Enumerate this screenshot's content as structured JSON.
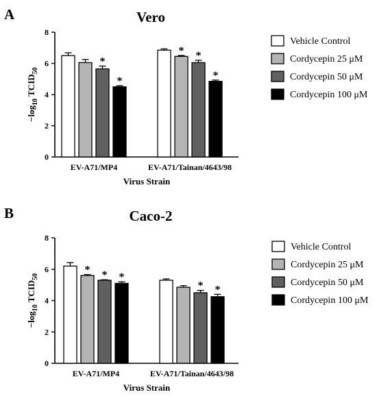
{
  "panels": [
    {
      "letter": "A",
      "chart_data": {
        "type": "bar",
        "title": "Vero",
        "xlabel": "Virus Strain",
        "ylabel": "−log10 TCID50",
        "ylabel_parts": {
          "prefix": "−log",
          "sub1": "10",
          "mid": " TCID",
          "sub2": "50"
        },
        "ylim": [
          0,
          8
        ],
        "yticks": [
          "0",
          "2",
          "4",
          "6",
          "8"
        ],
        "categories": [
          "EV-A71/MP4",
          "EV-A71/Tainan/4643/98"
        ],
        "series": [
          {
            "name": "Vehicle Control",
            "values": [
              6.5,
              6.85
            ],
            "errors": [
              0.18,
              0.08
            ],
            "significant": [
              false,
              false
            ],
            "color": "#ffffff"
          },
          {
            "name": "Cordycepin 25 μM",
            "values": [
              6.05,
              6.45
            ],
            "errors": [
              0.2,
              0.06
            ],
            "significant": [
              false,
              true
            ],
            "color": "#b4b4b4"
          },
          {
            "name": "Cordycepin 50 μM",
            "values": [
              5.65,
              6.05
            ],
            "errors": [
              0.18,
              0.15
            ],
            "significant": [
              true,
              true
            ],
            "color": "#606060"
          },
          {
            "name": "Cordycepin 100 μM",
            "values": [
              4.5,
              4.85
            ],
            "errors": [
              0.07,
              0.08
            ],
            "significant": [
              true,
              true
            ],
            "color": "#000000"
          }
        ],
        "significance_marker": "*",
        "grid": false,
        "legend_position": "right"
      }
    },
    {
      "letter": "B",
      "chart_data": {
        "type": "bar",
        "title": "Caco-2",
        "xlabel": "Virus Strain",
        "ylabel": "−log10 TCID50",
        "ylabel_parts": {
          "prefix": "−log",
          "sub1": "10",
          "mid": " TCID",
          "sub2": "50"
        },
        "ylim": [
          0,
          8
        ],
        "yticks": [
          "0",
          "2",
          "4",
          "6",
          "8"
        ],
        "categories": [
          "EV-A71/MP4",
          "EV-A71/Tainan/4643/98"
        ],
        "series": [
          {
            "name": "Vehicle Control",
            "values": [
              6.2,
              5.3
            ],
            "errors": [
              0.22,
              0.08
            ],
            "significant": [
              false,
              false
            ],
            "color": "#ffffff"
          },
          {
            "name": "Cordycepin 25 μM",
            "values": [
              5.6,
              4.85
            ],
            "errors": [
              0.06,
              0.1
            ],
            "significant": [
              true,
              false
            ],
            "color": "#b4b4b4"
          },
          {
            "name": "Cordycepin 50 μM",
            "values": [
              5.3,
              4.5
            ],
            "errors": [
              0.03,
              0.15
            ],
            "significant": [
              true,
              true
            ],
            "color": "#606060"
          },
          {
            "name": "Cordycepin 100 μM",
            "values": [
              5.1,
              4.25
            ],
            "errors": [
              0.1,
              0.15
            ],
            "significant": [
              true,
              true
            ],
            "color": "#000000"
          }
        ],
        "significance_marker": "*",
        "grid": false,
        "legend_position": "right"
      }
    }
  ]
}
